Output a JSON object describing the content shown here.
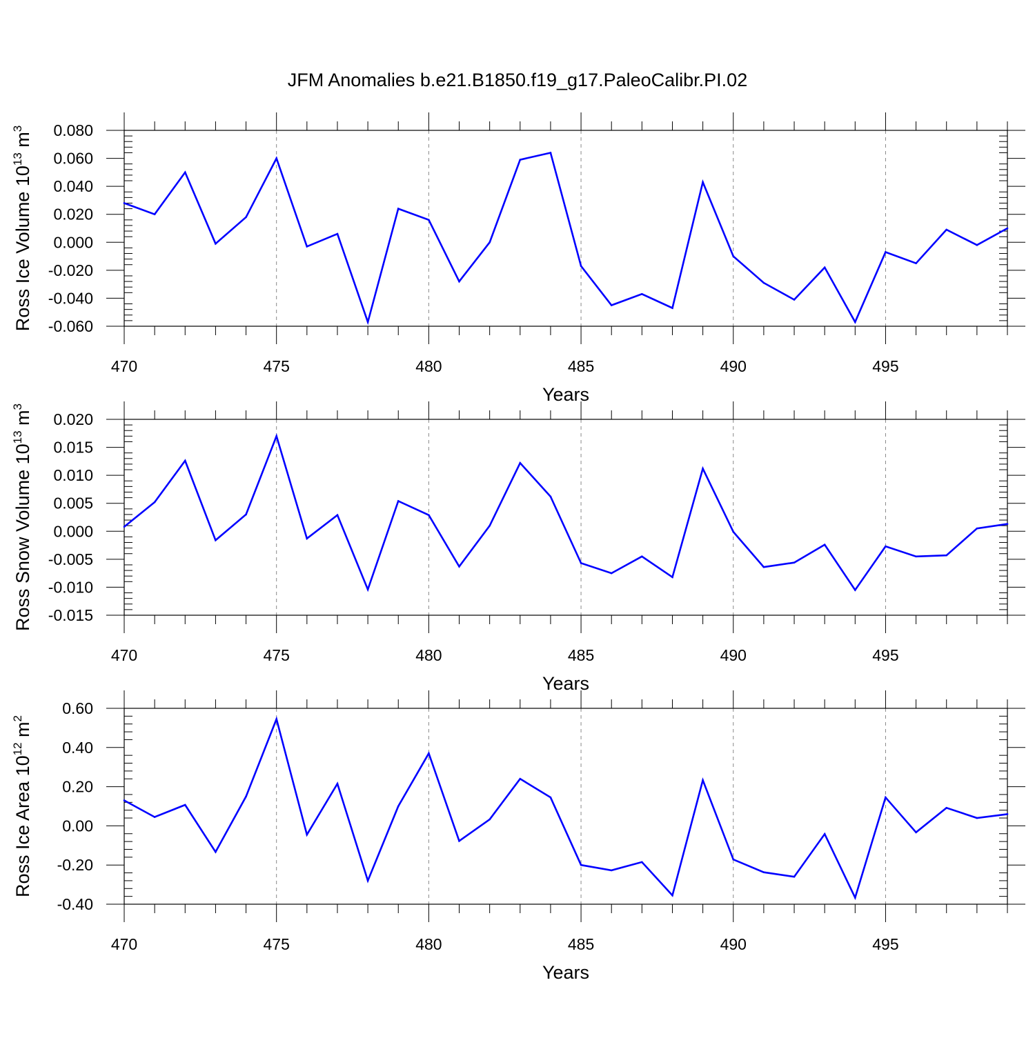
{
  "title": "JFM Anomalies b.e21.B1850.f19_g17.PaleoCalibr.PI.02",
  "line_color": "#0000ff",
  "chart_data": [
    {
      "type": "line",
      "ylabel_prefix": "Ross Ice Volume 10",
      "ylabel_exp": "13",
      "ylabel_unit": " m",
      "ylabel_unit_exp": "3",
      "xlabel": "Years",
      "xlim": [
        470,
        499
      ],
      "ylim": [
        -0.06,
        0.08
      ],
      "xticks": [
        "470",
        "475",
        "480",
        "485",
        "490",
        "495"
      ],
      "yticks": [
        "0.080",
        "0.060",
        "0.040",
        "0.020",
        "0.000",
        "-0.020",
        "-0.040",
        "-0.060"
      ],
      "grid": "vertical dashed at major x ticks",
      "x": [
        470,
        471,
        472,
        473,
        474,
        475,
        476,
        477,
        478,
        479,
        480,
        481,
        482,
        483,
        484,
        485,
        486,
        487,
        488,
        489,
        490,
        491,
        492,
        493,
        494,
        495,
        496,
        497,
        498,
        499
      ],
      "series": [
        {
          "values": [
            0.028,
            0.02,
            0.05,
            -0.001,
            0.018,
            0.06,
            -0.003,
            0.006,
            -0.057,
            0.024,
            0.016,
            -0.028,
            0.0,
            0.059,
            0.064,
            -0.017,
            -0.045,
            -0.037,
            -0.047,
            0.043,
            -0.01,
            -0.029,
            -0.041,
            -0.018,
            -0.057,
            -0.007,
            -0.015,
            0.009,
            -0.002,
            0.01
          ]
        }
      ]
    },
    {
      "type": "line",
      "ylabel_prefix": "Ross Snow Volume 10",
      "ylabel_exp": "13",
      "ylabel_unit": " m",
      "ylabel_unit_exp": "3",
      "xlabel": "Years",
      "xlim": [
        470,
        499
      ],
      "ylim": [
        -0.015,
        0.02
      ],
      "xticks": [
        "470",
        "475",
        "480",
        "485",
        "490",
        "495"
      ],
      "yticks": [
        "0.020",
        "0.015",
        "0.010",
        "0.005",
        "0.000",
        "-0.005",
        "-0.010",
        "-0.015"
      ],
      "grid": "vertical dashed at major x ticks",
      "x": [
        470,
        471,
        472,
        473,
        474,
        475,
        476,
        477,
        478,
        479,
        480,
        481,
        482,
        483,
        484,
        485,
        486,
        487,
        488,
        489,
        490,
        491,
        492,
        493,
        494,
        495,
        496,
        497,
        498,
        499
      ],
      "series": [
        {
          "values": [
            0.0008,
            0.0052,
            0.0126,
            -0.0016,
            0.003,
            0.017,
            -0.0013,
            0.0029,
            -0.0104,
            0.0054,
            0.0029,
            -0.0063,
            0.001,
            0.0122,
            0.0062,
            -0.0057,
            -0.0075,
            -0.0045,
            -0.0082,
            0.0112,
            -0.0001,
            -0.0064,
            -0.0056,
            -0.0024,
            -0.0105,
            -0.0027,
            -0.0045,
            -0.0043,
            0.0005,
            0.0013
          ]
        }
      ]
    },
    {
      "type": "line",
      "ylabel_prefix": "Ross Ice Area 10",
      "ylabel_exp": "12",
      "ylabel_unit": " m",
      "ylabel_unit_exp": "2",
      "xlabel": "Years",
      "xlim": [
        470,
        499
      ],
      "ylim": [
        -0.4,
        0.6
      ],
      "xticks": [
        "470",
        "475",
        "480",
        "485",
        "490",
        "495"
      ],
      "yticks": [
        "0.60",
        "0.40",
        "0.20",
        "0.00",
        "-0.20",
        "-0.40"
      ],
      "grid": "vertical dashed at major x ticks",
      "x": [
        470,
        471,
        472,
        473,
        474,
        475,
        476,
        477,
        478,
        479,
        480,
        481,
        482,
        483,
        484,
        485,
        486,
        487,
        488,
        489,
        490,
        491,
        492,
        493,
        494,
        495,
        496,
        497,
        498,
        499
      ],
      "series": [
        {
          "values": [
            0.13,
            0.045,
            0.107,
            -0.133,
            0.15,
            0.545,
            -0.045,
            0.215,
            -0.28,
            0.1,
            0.37,
            -0.077,
            0.033,
            0.24,
            0.145,
            -0.2,
            -0.227,
            -0.185,
            -0.355,
            0.233,
            -0.172,
            -0.237,
            -0.26,
            -0.042,
            -0.367,
            0.145,
            -0.033,
            0.092,
            0.04,
            0.06
          ]
        }
      ]
    }
  ]
}
